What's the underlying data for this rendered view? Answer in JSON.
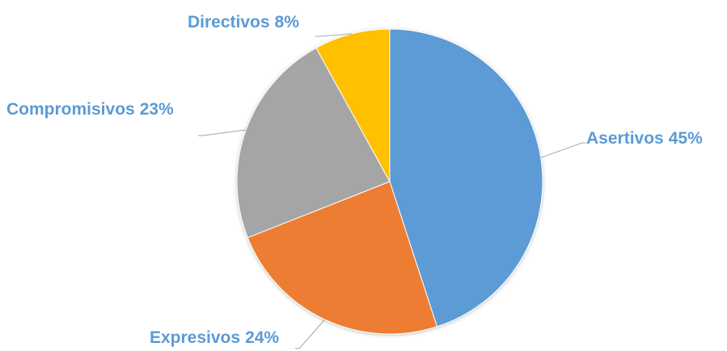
{
  "chart_data": {
    "type": "pie",
    "categories": [
      "Asertivos",
      "Expresivos",
      "Compromisivos",
      "Directivos"
    ],
    "values": [
      45,
      24,
      23,
      8
    ],
    "value_labels": [
      "45%",
      "24%",
      "23%",
      "8%"
    ],
    "colors": [
      "#5b9bd5",
      "#ed7d31",
      "#a5a5a5",
      "#ffc000"
    ],
    "label_color": "#5b9bd5"
  }
}
